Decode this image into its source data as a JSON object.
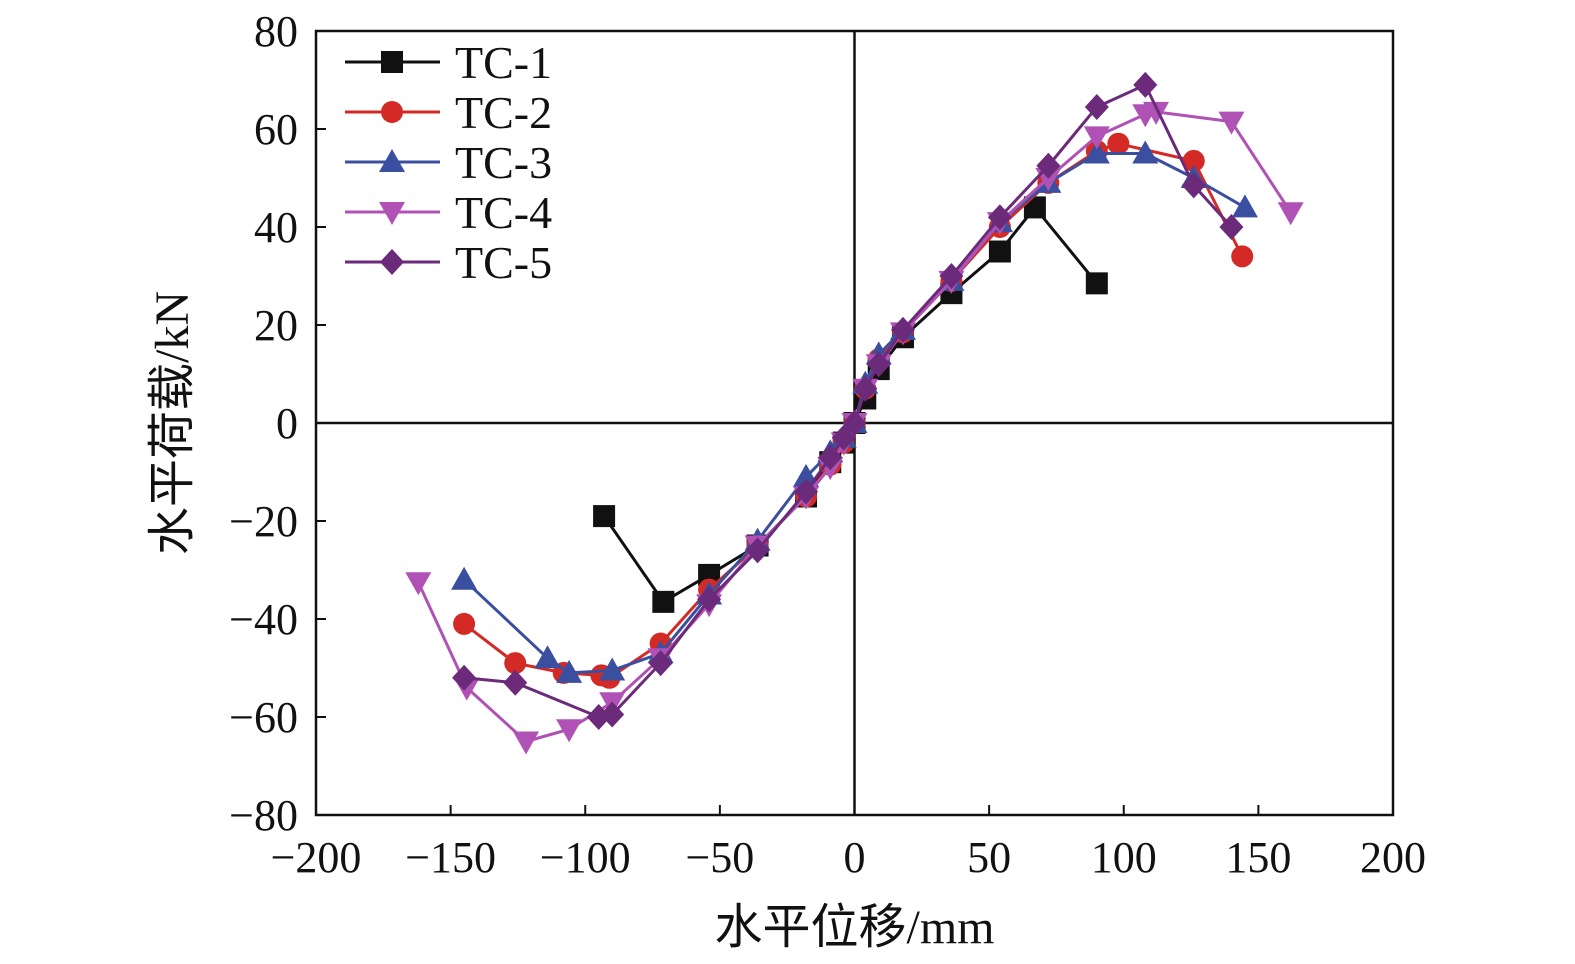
{
  "chart_data": {
    "type": "line",
    "title": "",
    "xlabel": "水平位移/mm",
    "ylabel": "水平荷载/kN",
    "xlim": [
      -200,
      200
    ],
    "ylim": [
      -80,
      80
    ],
    "xticks": [
      -200,
      -150,
      -100,
      -50,
      0,
      50,
      100,
      150,
      200
    ],
    "yticks": [
      -80,
      -60,
      -40,
      -20,
      0,
      20,
      40,
      60,
      80
    ],
    "xtick_labels": [
      "−200",
      "−150",
      "−100",
      "−50",
      "0",
      "50",
      "100",
      "150",
      "200"
    ],
    "ytick_labels": [
      "−80",
      "−60",
      "−40",
      "−20",
      "0",
      "20",
      "40",
      "60",
      "80"
    ],
    "grid": false,
    "legend_position": "top-left",
    "series": [
      {
        "name": "TC-1",
        "color": "#111111",
        "marker": "square",
        "points": [
          [
            -93,
            -19
          ],
          [
            -71,
            -36.5
          ],
          [
            -54,
            -31
          ],
          [
            -36,
            -25
          ],
          [
            -18,
            -15
          ],
          [
            -9,
            -8
          ],
          [
            -4,
            -4
          ],
          [
            0,
            0
          ],
          [
            4,
            5
          ],
          [
            9,
            11
          ],
          [
            18,
            17.5
          ],
          [
            36,
            26.5
          ],
          [
            54,
            35
          ],
          [
            67,
            44
          ],
          [
            90,
            28.5
          ]
        ]
      },
      {
        "name": "TC-2",
        "color": "#d42a25",
        "marker": "circle",
        "points": [
          [
            -145,
            -41
          ],
          [
            -126,
            -49
          ],
          [
            -108,
            -51
          ],
          [
            -94,
            -51.5
          ],
          [
            -91,
            -52
          ],
          [
            -72,
            -45
          ],
          [
            -54,
            -34
          ],
          [
            -36,
            -25
          ],
          [
            -18,
            -15
          ],
          [
            -9,
            -8.5
          ],
          [
            -4,
            -4
          ],
          [
            0,
            0
          ],
          [
            4,
            7
          ],
          [
            9,
            13
          ],
          [
            18,
            18.5
          ],
          [
            36,
            29
          ],
          [
            54,
            40
          ],
          [
            72,
            49
          ],
          [
            90,
            55.5
          ],
          [
            98,
            57
          ],
          [
            126,
            53.5
          ],
          [
            144,
            34
          ]
        ]
      },
      {
        "name": "TC-3",
        "color": "#3b4fa0",
        "marker": "triangle-up",
        "points": [
          [
            -145,
            -32
          ],
          [
            -114,
            -48
          ],
          [
            -106,
            -51
          ],
          [
            -90,
            -50.5
          ],
          [
            -72,
            -47
          ],
          [
            -54,
            -35
          ],
          [
            -36,
            -24
          ],
          [
            -18,
            -11
          ],
          [
            -9,
            -6
          ],
          [
            -4,
            -3
          ],
          [
            0,
            0
          ],
          [
            4,
            8
          ],
          [
            9,
            14
          ],
          [
            18,
            19
          ],
          [
            36,
            29
          ],
          [
            54,
            41
          ],
          [
            72,
            49
          ],
          [
            90,
            55
          ],
          [
            108,
            55
          ],
          [
            126,
            50
          ],
          [
            145,
            44
          ]
        ]
      },
      {
        "name": "TC-4",
        "color": "#b052b5",
        "marker": "triangle-down",
        "points": [
          [
            -162,
            -32.5
          ],
          [
            -144,
            -54
          ],
          [
            -122,
            -65
          ],
          [
            -106,
            -62.5
          ],
          [
            -90,
            -57
          ],
          [
            -72,
            -48
          ],
          [
            -54,
            -37
          ],
          [
            -36,
            -25
          ],
          [
            -18,
            -15
          ],
          [
            -9,
            -9
          ],
          [
            -4,
            -4
          ],
          [
            0,
            0
          ],
          [
            4,
            7
          ],
          [
            9,
            12
          ],
          [
            18,
            18.5
          ],
          [
            36,
            29
          ],
          [
            54,
            41
          ],
          [
            72,
            50
          ],
          [
            90,
            58.5
          ],
          [
            108,
            63
          ],
          [
            112,
            63.5
          ],
          [
            140,
            61.5
          ],
          [
            162,
            43
          ]
        ]
      },
      {
        "name": "TC-5",
        "color": "#6b2a7a",
        "marker": "diamond",
        "points": [
          [
            -145,
            -52
          ],
          [
            -126,
            -53
          ],
          [
            -95,
            -60
          ],
          [
            -90,
            -59.5
          ],
          [
            -72,
            -49
          ],
          [
            -54,
            -36
          ],
          [
            -36,
            -26
          ],
          [
            -18,
            -14
          ],
          [
            -9,
            -7
          ],
          [
            -4,
            -3
          ],
          [
            0,
            0
          ],
          [
            4,
            7
          ],
          [
            9,
            12
          ],
          [
            18,
            19
          ],
          [
            36,
            30
          ],
          [
            54,
            42
          ],
          [
            72,
            52.5
          ],
          [
            90,
            64.5
          ],
          [
            108,
            69
          ],
          [
            126,
            48.5
          ],
          [
            140,
            40
          ]
        ]
      }
    ]
  }
}
